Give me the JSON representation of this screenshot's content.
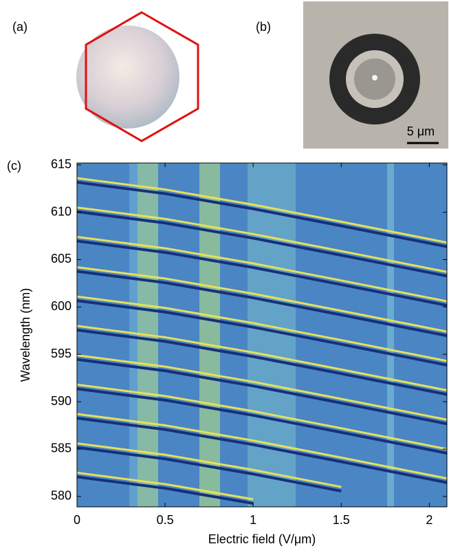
{
  "chart_data": {
    "type": "line",
    "panel_labels": [
      "(a)",
      "(b)",
      "(c)"
    ],
    "scale_bar": "5 μm",
    "x_label": "Electric field (V/μm)",
    "y_label": "Wavelength (nm)",
    "xlim": [
      0,
      2.1
    ],
    "ylim": [
      578.9,
      615.2
    ],
    "xticks": [
      0,
      0.5,
      1,
      1.5,
      2
    ],
    "yticks": [
      580,
      585,
      590,
      595,
      600,
      605,
      610,
      615
    ],
    "background_color": "#4a86c4",
    "line_color": "#e8e05a",
    "x": [
      0,
      0.5,
      1,
      1.5,
      2.1
    ],
    "series": [
      {
        "values": [
          613.6,
          612.4,
          610.8,
          609.0,
          606.8
        ]
      },
      {
        "values": [
          610.5,
          609.3,
          607.7,
          605.9,
          603.7
        ]
      },
      {
        "values": [
          607.4,
          606.2,
          604.6,
          602.8,
          600.6
        ]
      },
      {
        "values": [
          604.2,
          603.0,
          601.4,
          599.6,
          597.4
        ]
      },
      {
        "values": [
          601.1,
          599.9,
          598.3,
          596.5,
          594.3
        ]
      },
      {
        "values": [
          598.0,
          596.8,
          595.2,
          593.4,
          591.2
        ]
      },
      {
        "values": [
          594.9,
          593.7,
          592.1,
          590.3,
          588.1
        ]
      },
      {
        "values": [
          591.8,
          590.6,
          589.0,
          587.2,
          585.0
        ]
      },
      {
        "values": [
          588.7,
          587.5,
          585.9,
          584.1,
          581.9
        ]
      },
      {
        "values": [
          585.6,
          584.4,
          582.8,
          581.0,
          null
        ]
      },
      {
        "values": [
          582.5,
          581.3,
          579.7,
          null,
          null
        ]
      }
    ]
  }
}
